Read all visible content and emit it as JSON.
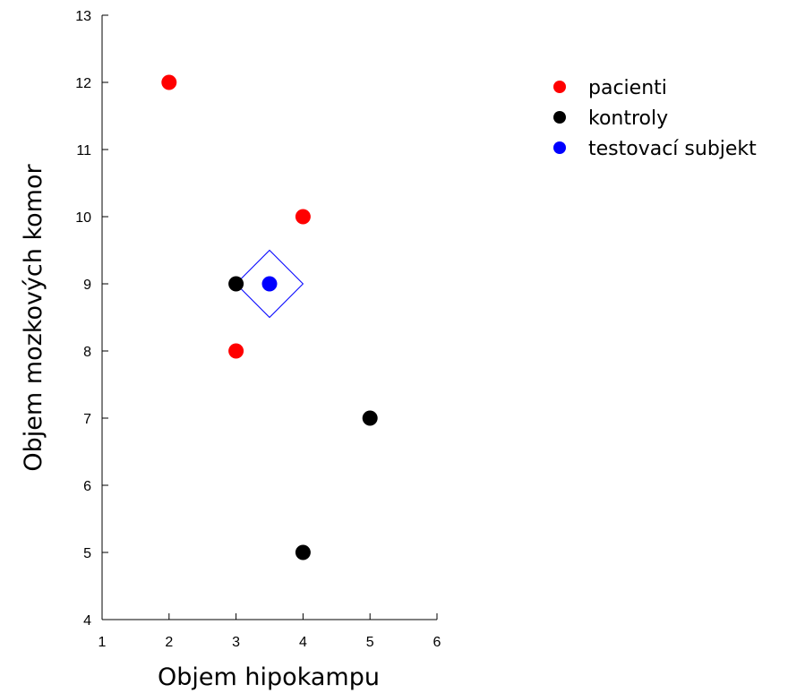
{
  "chart_data": {
    "type": "scatter",
    "title": "",
    "xlabel": "Objem hipokampu",
    "ylabel": "Objem mozkových komor",
    "xlim": [
      1,
      6
    ],
    "ylim": [
      4,
      13
    ],
    "xticks": [
      1,
      2,
      3,
      4,
      5,
      6
    ],
    "yticks": [
      4,
      5,
      6,
      7,
      8,
      9,
      10,
      11,
      12,
      13
    ],
    "grid": false,
    "legend_position": "top-right",
    "series": [
      {
        "name": "pacienti",
        "color": "#ff0000",
        "points": [
          {
            "x": 2,
            "y": 12
          },
          {
            "x": 4,
            "y": 10
          },
          {
            "x": 3,
            "y": 8
          }
        ]
      },
      {
        "name": "kontroly",
        "color": "#000000",
        "points": [
          {
            "x": 3,
            "y": 9
          },
          {
            "x": 5,
            "y": 7
          },
          {
            "x": 4,
            "y": 5
          }
        ]
      },
      {
        "name": "testovací subjekt",
        "color": "#0000ff",
        "points": [
          {
            "x": 3.5,
            "y": 9
          }
        ]
      }
    ],
    "annotations": [
      {
        "type": "diamond",
        "color": "#0000ff",
        "center": {
          "x": 3.5,
          "y": 9
        },
        "half_width": 0.5,
        "half_height": 0.5
      }
    ]
  }
}
